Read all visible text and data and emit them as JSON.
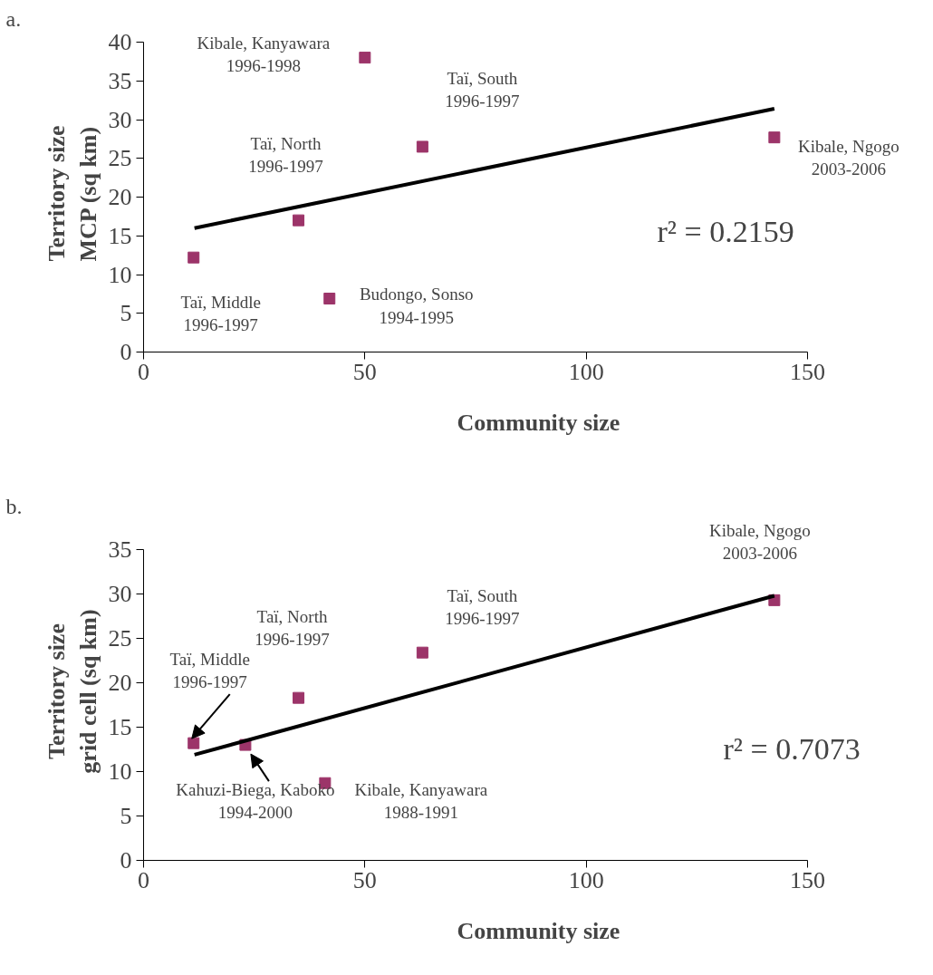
{
  "chart_data": [
    {
      "type": "scatter",
      "title": "a.",
      "xlabel": "Community size",
      "ylabel": "Territory size\nMCP (sq km)",
      "xlim": [
        0,
        150
      ],
      "xticks": [
        0,
        50,
        100,
        150
      ],
      "ylim": [
        0,
        40
      ],
      "yticks": [
        0,
        5,
        10,
        15,
        20,
        25,
        30,
        35,
        40
      ],
      "grid": false,
      "marker": "square",
      "series": [
        {
          "color": "#9c3469",
          "x": [
            11.3,
            35,
            42,
            50,
            63,
            142.5
          ],
          "values": [
            12.2,
            17,
            6.9,
            38,
            26.5,
            27.7
          ]
        },
        {
          "type": "line",
          "marker": "none",
          "color": "#000000",
          "x": [
            11.5,
            142.5
          ],
          "values": [
            16,
            31.4
          ]
        }
      ],
      "annotations": [
        {
          "text": "Taï, Middle\n1996-1997",
          "x": 11.3,
          "y": 12.2
        },
        {
          "text": "Taï, North\n1996-1997",
          "x": 35,
          "y": 17
        },
        {
          "text": "Budongo, Sonso\n1994-1995",
          "x": 42,
          "y": 6.9
        },
        {
          "text": "Kibale, Kanyawara\n1996-1998",
          "x": 50,
          "y": 38
        },
        {
          "text": "Taï, South\n1996-1997",
          "x": 63,
          "y": 26.5
        },
        {
          "text": "Kibale, Ngogo\n2003-2006",
          "x": 142.5,
          "y": 27.7
        },
        "r² = 0.2159"
      ]
    },
    {
      "type": "scatter",
      "title": "b.",
      "xlabel": "Community size",
      "ylabel": "Territory size\ngrid cell (sq km)",
      "xlim": [
        0,
        150
      ],
      "xticks": [
        0,
        50,
        100,
        150
      ],
      "ylim": [
        0,
        35
      ],
      "yticks": [
        0,
        5,
        10,
        15,
        20,
        25,
        30,
        35
      ],
      "grid": false,
      "marker": "square",
      "series": [
        {
          "color": "#9c3469",
          "x": [
            11.3,
            23,
            35,
            41,
            63,
            142.5
          ],
          "values": [
            13.2,
            13,
            18.3,
            8.7,
            23.4,
            29.3
          ]
        },
        {
          "type": "line",
          "marker": "none",
          "color": "#000000",
          "x": [
            11.5,
            142.5
          ],
          "values": [
            11.9,
            29.8
          ]
        }
      ],
      "annotations": [
        {
          "text": "Taï, Middle\n1996-1997",
          "x": 11.3,
          "y": 13.2
        },
        {
          "text": "Kahuzi-Biega, Kaboko\n1994-2000",
          "x": 23,
          "y": 13
        },
        {
          "text": "Taï, North\n1996-1997",
          "x": 35,
          "y": 18.3
        },
        {
          "text": "Kibale, Kanyawara\n1988-1991",
          "x": 41,
          "y": 8.7
        },
        {
          "text": "Taï, South\n1996-1997",
          "x": 63,
          "y": 23.4
        },
        {
          "text": "Kibale, Ngogo\n2003-2006",
          "x": 142.5,
          "y": 29.3
        },
        "r² = 0.7073"
      ]
    }
  ]
}
